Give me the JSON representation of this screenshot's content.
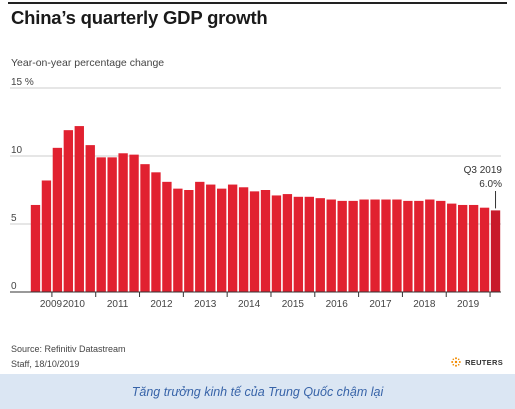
{
  "title": "China’s quarterly GDP growth",
  "subtitle": "Year-on-year percentage change",
  "source": "Source: Refinitiv Datastream",
  "credit": "Staff, 18/10/2019",
  "logo_text": "REUTERS",
  "caption": "Tăng trưởng kinh tế của Trung Quốc chậm lại",
  "colors": {
    "bar": "#e12130",
    "bar_last": "#c81a2a",
    "grid": "#cccccc",
    "axis": "#333333",
    "caption_bg": "#dbe6f3",
    "caption_text": "#3763a8"
  },
  "icons": {
    "logo": "reuters-dots-icon"
  },
  "chart_data": {
    "type": "bar",
    "title": "China’s quarterly GDP growth",
    "ylabel": "Year-on-year percentage change",
    "ylim": [
      0,
      15
    ],
    "yticks": [
      {
        "value": 15,
        "label": "15 %"
      },
      {
        "value": 10,
        "label": "10"
      },
      {
        "value": 5,
        "label": "5"
      },
      {
        "value": 0,
        "label": "0"
      }
    ],
    "grid": true,
    "x_tick_labels": [
      "2009",
      "2010",
      "2011",
      "2012",
      "2013",
      "2014",
      "2015",
      "2016",
      "2017",
      "2018",
      "2019"
    ],
    "values": [
      6.4,
      8.2,
      10.6,
      11.9,
      12.2,
      10.8,
      9.9,
      9.9,
      10.2,
      10.1,
      9.4,
      8.8,
      8.1,
      7.6,
      7.5,
      8.1,
      7.9,
      7.6,
      7.9,
      7.7,
      7.4,
      7.5,
      7.1,
      7.2,
      7.0,
      7.0,
      6.9,
      6.8,
      6.7,
      6.7,
      6.8,
      6.8,
      6.8,
      6.8,
      6.7,
      6.7,
      6.8,
      6.7,
      6.5,
      6.4,
      6.4,
      6.2,
      6.0
    ],
    "annotation": {
      "label": "Q3 2019",
      "value": "6.0%"
    }
  }
}
